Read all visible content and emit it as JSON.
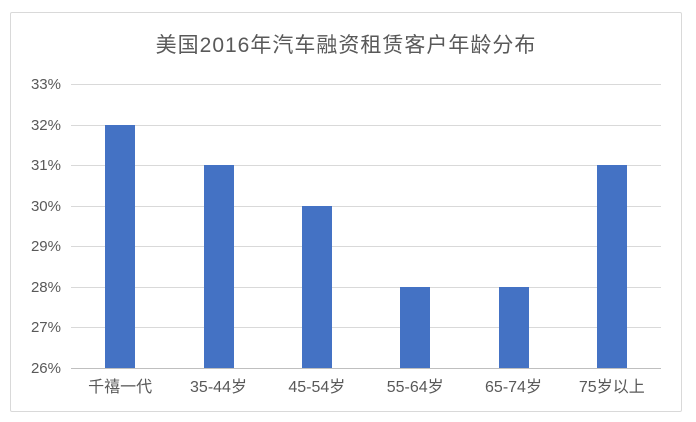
{
  "chart": {
    "title": "美国2016年汽车融资租赁客户年龄分布"
  },
  "chart_data": {
    "type": "bar",
    "title": "美国2016年汽车融资租赁客户年龄分布",
    "categories": [
      "千禧一代",
      "35-44岁",
      "45-54岁",
      "55-64岁",
      "65-74岁",
      "75岁以上"
    ],
    "values": [
      32,
      31,
      30,
      28,
      28,
      31
    ],
    "unit": "%",
    "xlabel": "",
    "ylabel": "",
    "ylim": [
      26,
      33
    ],
    "ytick_step": 1,
    "ytick_labels": [
      "26%",
      "27%",
      "28%",
      "29%",
      "30%",
      "31%",
      "32%",
      "33%"
    ],
    "grid": true,
    "legend": false,
    "colors": {
      "bar": "#4472C4",
      "gridline": "#D9D9D9",
      "axis_line": "#BFBFBF",
      "text": "#595959",
      "title_text": "#595959",
      "frame_border": "#D9D9D9",
      "background": "#FFFFFF"
    }
  }
}
